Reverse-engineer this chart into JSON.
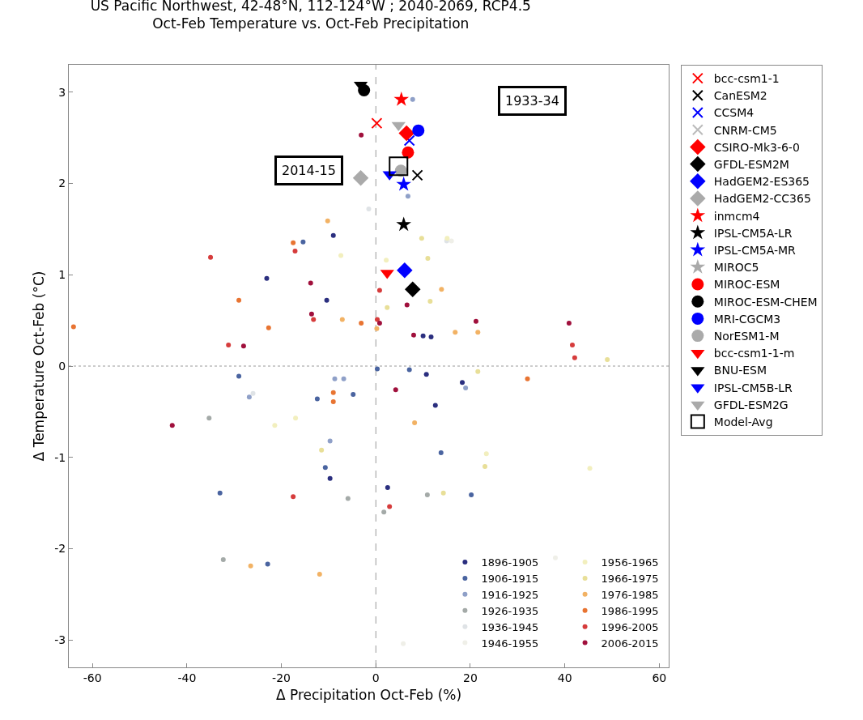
{
  "chart_data": {
    "type": "scatter",
    "title": "US Pacific Northwest, 42-48°N, 112-124°W ; 2040-2069, RCP4.5",
    "subtitle": "Oct-Feb Temperature vs. Oct-Feb Precipitation",
    "xlabel": "Δ Precipitation Oct-Feb (%)",
    "ylabel": "Δ Temperature Oct-Feb (°C)",
    "xlim": [
      -65,
      62
    ],
    "ylim": [
      -3.3,
      3.3
    ],
    "xticks": [
      -60,
      -40,
      -20,
      0,
      20,
      40,
      60
    ],
    "yticks": [
      -3,
      -2,
      -1,
      0,
      1,
      2,
      3
    ],
    "grid": false,
    "legend": "right",
    "ref_lines": [
      {
        "axis": "x",
        "value": 0,
        "color": "#999999",
        "line_style": "dashed"
      },
      {
        "axis": "y",
        "value": 0,
        "color": "#999999",
        "line_style": "dotted"
      }
    ],
    "annotations": [
      "1933-34",
      "2014-15"
    ],
    "series": [
      {
        "name": "bcc-csm1-1",
        "color": "#ff0000",
        "marker": "cross",
        "x": [
          0.2
        ],
        "values": [
          2.66
        ]
      },
      {
        "name": "CanESM2",
        "color": "#000000",
        "marker": "cross",
        "x": [
          8.8
        ],
        "values": [
          2.09
        ]
      },
      {
        "name": "CCSM4",
        "color": "#0000ff",
        "marker": "cross",
        "x": [
          7.1
        ],
        "values": [
          2.47
        ]
      },
      {
        "name": "CNRM-CM5",
        "color": "#bbbbbb",
        "marker": "cross",
        "x": [
          null
        ],
        "values": [
          null
        ]
      },
      {
        "name": "CSIRO-Mk3-6-0",
        "color": "#ff0000",
        "marker": "diamond",
        "x": [
          6.5
        ],
        "values": [
          2.55
        ]
      },
      {
        "name": "GFDL-ESM2M",
        "color": "#000000",
        "marker": "diamond",
        "x": [
          7.8
        ],
        "values": [
          0.84
        ]
      },
      {
        "name": "HadGEM2-ES365",
        "color": "#0000ff",
        "marker": "diamond",
        "x": [
          6.1
        ],
        "values": [
          1.05
        ]
      },
      {
        "name": "HadGEM2-CC365",
        "color": "#aaaaaa",
        "marker": "diamond",
        "x": [
          -3.2
        ],
        "values": [
          2.06
        ]
      },
      {
        "name": "inmcm4",
        "color": "#ff0000",
        "marker": "star",
        "x": [
          5.4
        ],
        "values": [
          2.92
        ]
      },
      {
        "name": "IPSL-CM5A-LR",
        "color": "#000000",
        "marker": "star",
        "x": [
          5.9
        ],
        "values": [
          1.55
        ]
      },
      {
        "name": "IPSL-CM5A-MR",
        "color": "#0000ff",
        "marker": "star",
        "x": [
          5.9
        ],
        "values": [
          1.99
        ]
      },
      {
        "name": "MIROC5",
        "color": "#aaaaaa",
        "marker": "star",
        "x": [
          null
        ],
        "values": [
          null
        ]
      },
      {
        "name": "MIROC-ESM",
        "color": "#ff0000",
        "marker": "circle",
        "x": [
          6.8
        ],
        "values": [
          2.34
        ]
      },
      {
        "name": "MIROC-ESM-CHEM",
        "color": "#000000",
        "marker": "circle",
        "x": [
          -2.5
        ],
        "values": [
          3.02
        ]
      },
      {
        "name": "MRI-CGCM3",
        "color": "#0000ff",
        "marker": "circle",
        "x": [
          9.0
        ],
        "values": [
          2.58
        ]
      },
      {
        "name": "NorESM1-M",
        "color": "#aaaaaa",
        "marker": "circle",
        "x": [
          5.3
        ],
        "values": [
          2.14
        ]
      },
      {
        "name": "bcc-csm1-1-m",
        "color": "#ff0000",
        "marker": "triangle",
        "x": [
          2.4
        ],
        "values": [
          1.02
        ]
      },
      {
        "name": "BNU-ESM",
        "color": "#000000",
        "marker": "triangle",
        "x": [
          -3.2
        ],
        "values": [
          3.08
        ]
      },
      {
        "name": "IPSL-CM5B-LR",
        "color": "#0000ff",
        "marker": "triangle",
        "x": [
          2.9
        ],
        "values": [
          2.1
        ]
      },
      {
        "name": "GFDL-ESM2G",
        "color": "#aaaaaa",
        "marker": "triangle",
        "x": [
          4.8
        ],
        "values": [
          2.64
        ]
      },
      {
        "name": "Model-Avg",
        "color": "#000000",
        "marker": "square",
        "x": [
          4.8
        ],
        "values": [
          2.19
        ]
      },
      {
        "name": "1896-1905",
        "color": "#2b2f7f",
        "marker": "circle",
        "x": [
          -9.0,
          -23.1,
          -10.4,
          10.0,
          11.7,
          10.7,
          18.3,
          12.6,
          -9.7,
          2.5
        ],
        "values": [
          1.43,
          0.96,
          0.72,
          0.33,
          0.32,
          -0.09,
          -0.18,
          -0.43,
          -1.23,
          -1.33
        ]
      },
      {
        "name": "1906-1915",
        "color": "#4a64a0",
        "marker": "circle",
        "x": [
          -15.4,
          7.1,
          0.3,
          -29.0,
          -12.4,
          -4.8,
          20.2,
          -10.7,
          -22.9,
          -33.0,
          13.8
        ],
        "values": [
          1.36,
          -0.04,
          -0.03,
          -0.11,
          -0.36,
          -0.31,
          -1.41,
          -1.11,
          -2.17,
          -1.39,
          -0.95
        ]
      },
      {
        "name": "1916-1925",
        "color": "#8fa0c8",
        "marker": "circle",
        "x": [
          6.8,
          -9.7,
          19.0,
          -6.8,
          -8.7,
          -26.8,
          7.8
        ],
        "values": [
          1.86,
          -0.82,
          -0.24,
          -0.14,
          -0.14,
          -0.34,
          2.92
        ]
      },
      {
        "name": "1926-1935",
        "color": "#a4aaa8",
        "marker": "circle",
        "x": [
          -35.3,
          -5.9,
          10.9,
          -32.3,
          1.7
        ],
        "values": [
          -0.57,
          -1.45,
          -1.41,
          -2.12,
          -1.6
        ]
      },
      {
        "name": "1936-1945",
        "color": "#dfe3e6",
        "marker": "circle",
        "x": [
          -1.5,
          -26.0,
          15.0
        ],
        "values": [
          1.72,
          -0.3,
          1.37
        ]
      },
      {
        "name": "1946-1955",
        "color": "#efefe8",
        "marker": "circle",
        "x": [
          16.0,
          5.8,
          38.0
        ],
        "values": [
          1.37,
          -3.04,
          -2.1
        ]
      },
      {
        "name": "1956-1965",
        "color": "#f2efbe",
        "marker": "circle",
        "x": [
          2.2,
          -7.4,
          15.1,
          -17.0,
          -21.4,
          23.4,
          45.3
        ],
        "values": [
          1.16,
          1.21,
          1.4,
          -0.57,
          -0.65,
          -0.96,
          -1.12
        ]
      },
      {
        "name": "1966-1975",
        "color": "#e8df98",
        "marker": "circle",
        "x": [
          14.3,
          23.1,
          -11.5,
          21.6,
          9.7,
          11.0,
          11.5,
          2.4,
          49.0
        ],
        "values": [
          -1.39,
          -1.1,
          -0.92,
          -0.06,
          1.4,
          1.18,
          0.71,
          0.64,
          0.07
        ]
      },
      {
        "name": "1976-1985",
        "color": "#f2b264",
        "marker": "circle",
        "x": [
          -10.2,
          -7.1,
          13.9,
          16.8,
          0.2,
          8.2,
          -11.9,
          -26.5,
          21.6
        ],
        "values": [
          1.59,
          0.51,
          0.84,
          0.37,
          0.41,
          -0.62,
          -2.28,
          -2.19,
          0.37
        ]
      },
      {
        "name": "1986-1995",
        "color": "#e87432",
        "marker": "circle",
        "x": [
          -17.5,
          -29.0,
          -3.1,
          -9.0,
          -9.0,
          32.1,
          -22.7,
          -64.0
        ],
        "values": [
          1.35,
          0.72,
          0.47,
          -0.29,
          -0.39,
          -0.14,
          0.42,
          0.43
        ]
      },
      {
        "name": "1996-2005",
        "color": "#d63c3c",
        "marker": "circle",
        "x": [
          -35.0,
          -17.1,
          -31.2,
          0.8,
          0.3,
          -17.5,
          2.9,
          41.6,
          42.1,
          -13.2
        ],
        "values": [
          1.19,
          1.26,
          0.23,
          0.83,
          0.51,
          -1.43,
          -1.54,
          0.23,
          0.09,
          0.51
        ]
      },
      {
        "name": "2006-2015",
        "color": "#a0103c",
        "marker": "circle",
        "x": [
          -3.1,
          -13.8,
          -13.6,
          -28.0,
          8.0,
          0.8,
          21.2,
          40.9,
          4.2,
          -43.1,
          6.6
        ],
        "values": [
          2.53,
          0.91,
          0.57,
          0.22,
          0.34,
          0.47,
          0.49,
          0.47,
          -0.26,
          -0.65,
          0.67
        ]
      }
    ]
  }
}
